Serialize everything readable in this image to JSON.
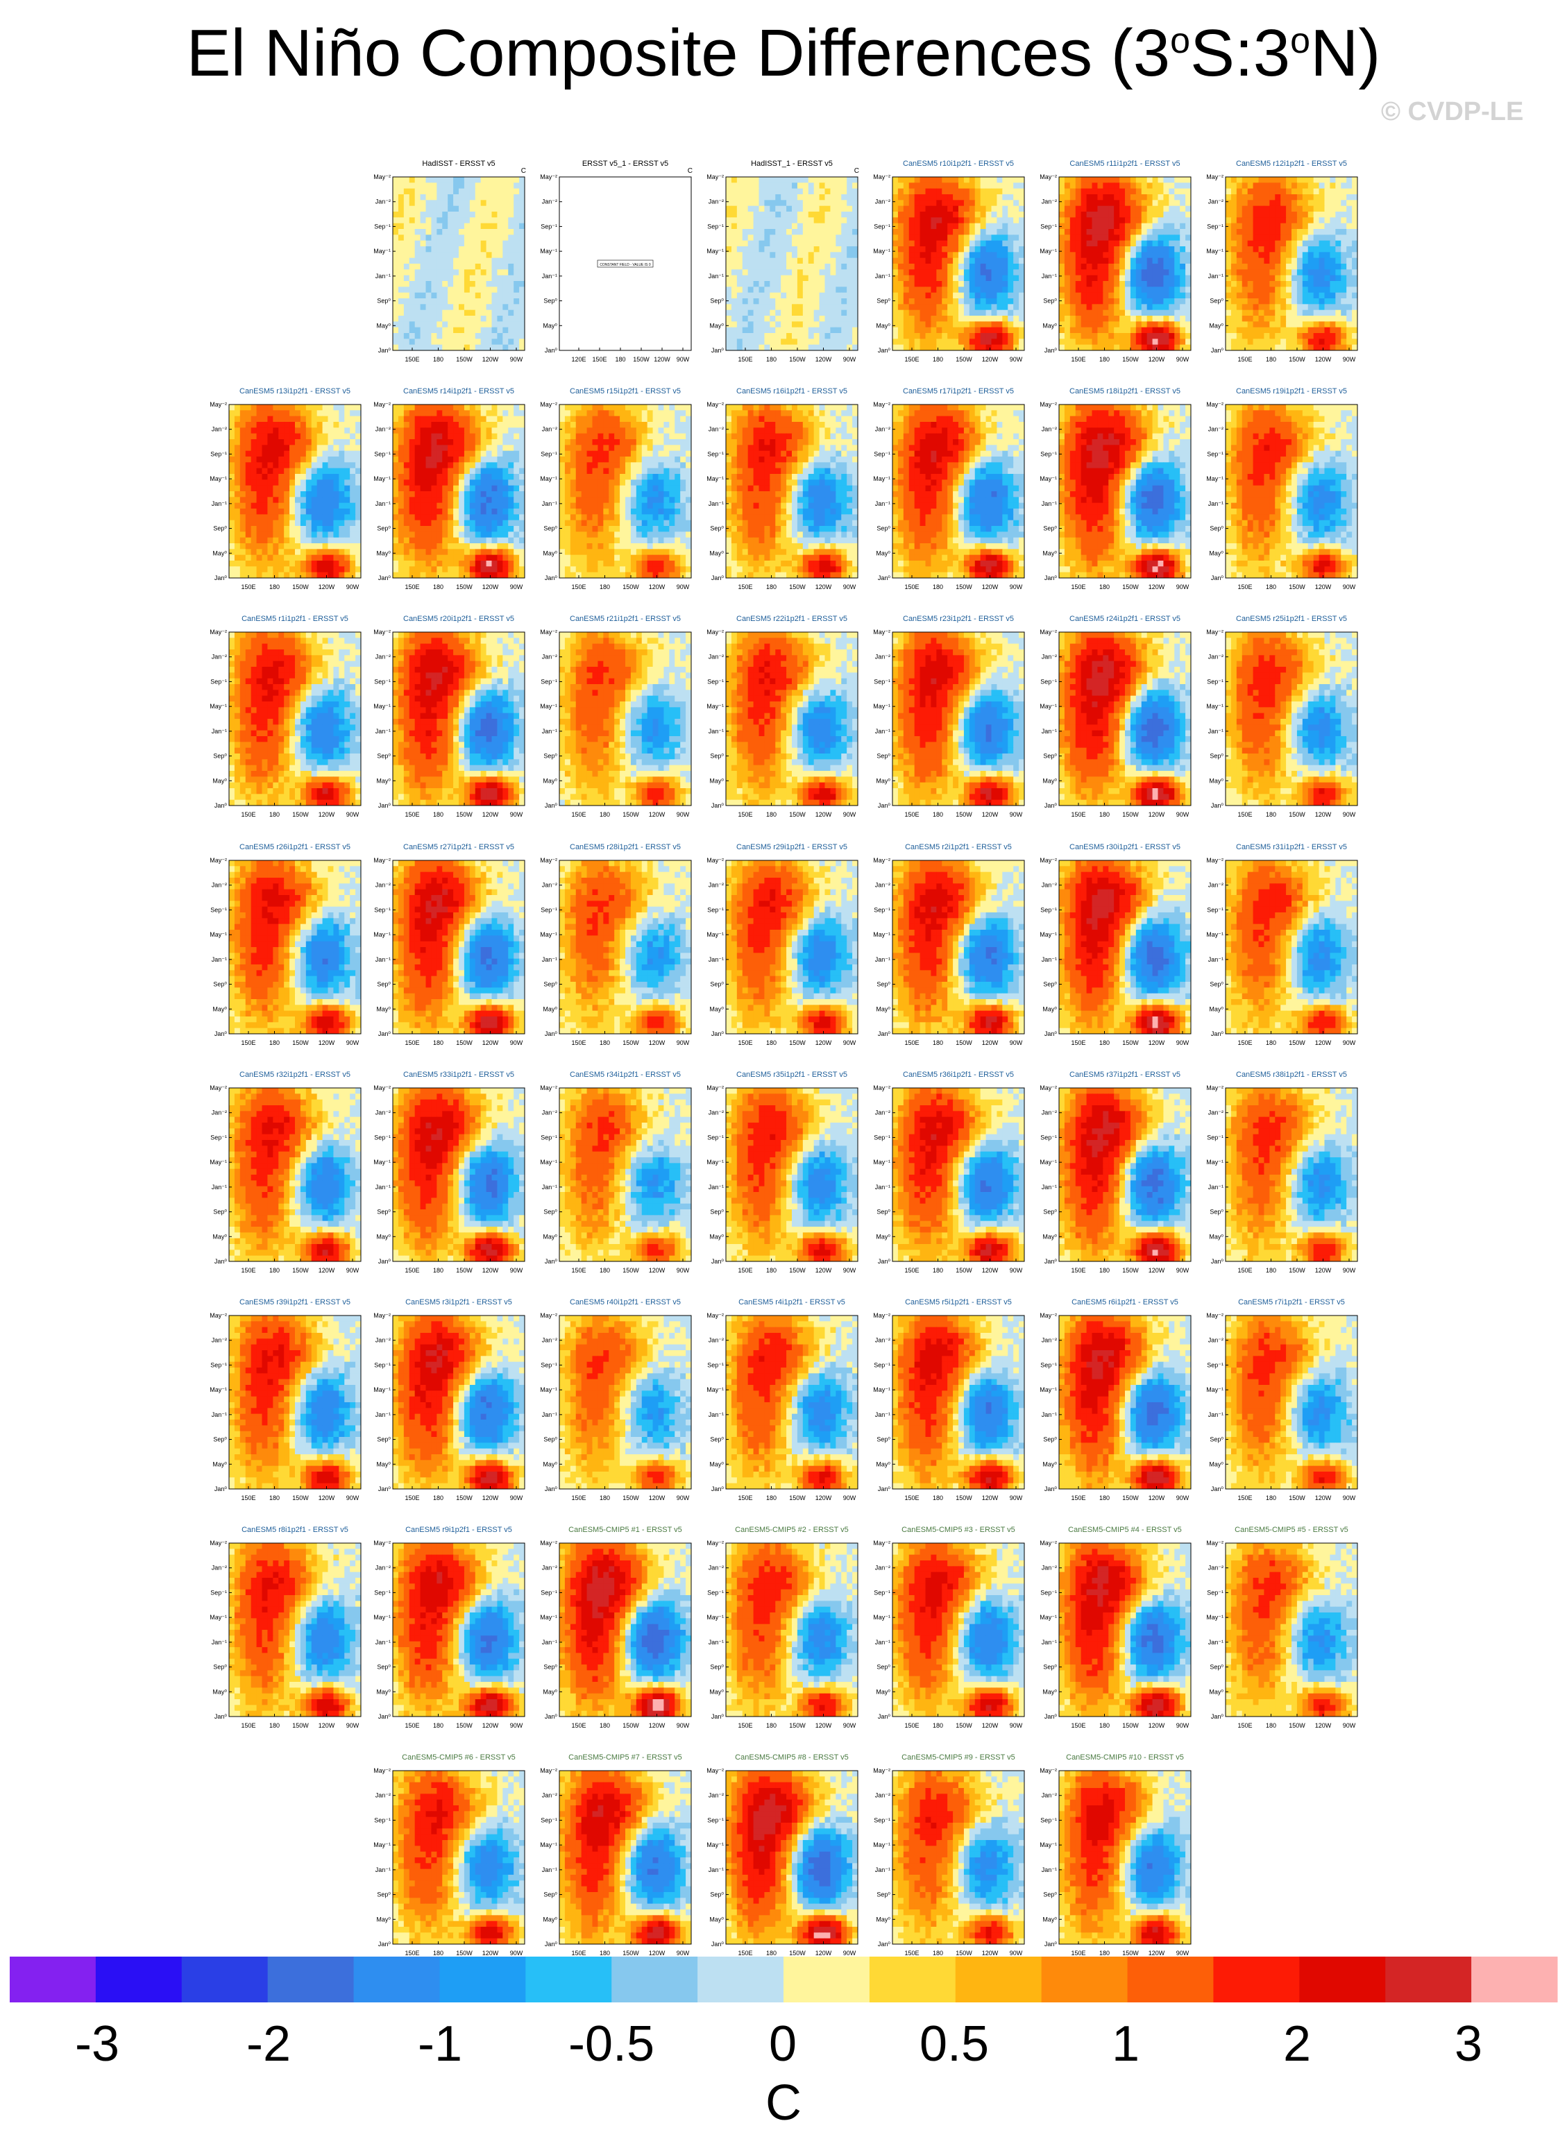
{
  "title": {
    "main": "El Niño Composite Differences (3",
    "sup1": "o",
    "mid": "S:3",
    "sup2": "o",
    "end": "N)"
  },
  "watermark": "© CVDP-LE",
  "axes": {
    "y_ticks": [
      "May⁻²",
      "Jan⁻²",
      "Sep⁻¹",
      "May⁻¹",
      "Jan⁻¹",
      "Sep⁰",
      "May⁰",
      "Jan⁰"
    ],
    "x_ticks": [
      "150E",
      "180",
      "150W",
      "120W",
      "90W"
    ],
    "x_ticks_wide": [
      "120E",
      "150E",
      "180",
      "150W",
      "120W",
      "90W"
    ],
    "units_marker": "C"
  },
  "panels": [
    {
      "title": "HadISST - ERSST v5",
      "kind": "obs"
    },
    {
      "title": "ERSST v5_1 - ERSST v5",
      "kind": "constant",
      "note": "CONSTANT FIELD - VALUE IS 0"
    },
    {
      "title": "HadISST_1 - ERSST v5",
      "kind": "obs"
    },
    {
      "title": "CanESM5 r10i1p2f1 - ERSST v5",
      "kind": "model"
    },
    {
      "title": "CanESM5 r11i1p2f1 - ERSST v5",
      "kind": "model"
    },
    {
      "title": "CanESM5 r12i1p2f1 - ERSST v5",
      "kind": "model"
    },
    {
      "title": "CanESM5 r13i1p2f1 - ERSST v5",
      "kind": "model"
    },
    {
      "title": "CanESM5 r14i1p2f1 - ERSST v5",
      "kind": "model"
    },
    {
      "title": "CanESM5 r15i1p2f1 - ERSST v5",
      "kind": "model"
    },
    {
      "title": "CanESM5 r16i1p2f1 - ERSST v5",
      "kind": "model"
    },
    {
      "title": "CanESM5 r17i1p2f1 - ERSST v5",
      "kind": "model"
    },
    {
      "title": "CanESM5 r18i1p2f1 - ERSST v5",
      "kind": "model"
    },
    {
      "title": "CanESM5 r19i1p2f1 - ERSST v5",
      "kind": "model"
    },
    {
      "title": "CanESM5 r1i1p2f1 - ERSST v5",
      "kind": "model"
    },
    {
      "title": "CanESM5 r20i1p2f1 - ERSST v5",
      "kind": "model"
    },
    {
      "title": "CanESM5 r21i1p2f1 - ERSST v5",
      "kind": "model"
    },
    {
      "title": "CanESM5 r22i1p2f1 - ERSST v5",
      "kind": "model"
    },
    {
      "title": "CanESM5 r23i1p2f1 - ERSST v5",
      "kind": "model"
    },
    {
      "title": "CanESM5 r24i1p2f1 - ERSST v5",
      "kind": "model"
    },
    {
      "title": "CanESM5 r25i1p2f1 - ERSST v5",
      "kind": "model"
    },
    {
      "title": "CanESM5 r26i1p2f1 - ERSST v5",
      "kind": "model"
    },
    {
      "title": "CanESM5 r27i1p2f1 - ERSST v5",
      "kind": "model"
    },
    {
      "title": "CanESM5 r28i1p2f1 - ERSST v5",
      "kind": "model"
    },
    {
      "title": "CanESM5 r29i1p2f1 - ERSST v5",
      "kind": "model"
    },
    {
      "title": "CanESM5 r2i1p2f1 - ERSST v5",
      "kind": "model"
    },
    {
      "title": "CanESM5 r30i1p2f1 - ERSST v5",
      "kind": "model"
    },
    {
      "title": "CanESM5 r31i1p2f1 - ERSST v5",
      "kind": "model"
    },
    {
      "title": "CanESM5 r32i1p2f1 - ERSST v5",
      "kind": "model"
    },
    {
      "title": "CanESM5 r33i1p2f1 - ERSST v5",
      "kind": "model"
    },
    {
      "title": "CanESM5 r34i1p2f1 - ERSST v5",
      "kind": "model"
    },
    {
      "title": "CanESM5 r35i1p2f1 - ERSST v5",
      "kind": "model"
    },
    {
      "title": "CanESM5 r36i1p2f1 - ERSST v5",
      "kind": "model"
    },
    {
      "title": "CanESM5 r37i1p2f1 - ERSST v5",
      "kind": "model"
    },
    {
      "title": "CanESM5 r38i1p2f1 - ERSST v5",
      "kind": "model"
    },
    {
      "title": "CanESM5 r39i1p2f1 - ERSST v5",
      "kind": "model"
    },
    {
      "title": "CanESM5 r3i1p2f1 - ERSST v5",
      "kind": "model"
    },
    {
      "title": "CanESM5 r40i1p2f1 - ERSST v5",
      "kind": "model"
    },
    {
      "title": "CanESM5 r4i1p2f1 - ERSST v5",
      "kind": "model"
    },
    {
      "title": "CanESM5 r5i1p2f1 - ERSST v5",
      "kind": "model"
    },
    {
      "title": "CanESM5 r6i1p2f1 - ERSST v5",
      "kind": "model"
    },
    {
      "title": "CanESM5 r7i1p2f1 - ERSST v5",
      "kind": "model"
    },
    {
      "title": "CanESM5 r8i1p2f1 - ERSST v5",
      "kind": "model"
    },
    {
      "title": "CanESM5 r9i1p2f1 - ERSST v5",
      "kind": "model"
    },
    {
      "title": "CanESM5-CMIP5 #1 - ERSST v5",
      "kind": "cmip5"
    },
    {
      "title": "CanESM5-CMIP5 #2 - ERSST v5",
      "kind": "cmip5"
    },
    {
      "title": "CanESM5-CMIP5 #3 - ERSST v5",
      "kind": "cmip5"
    },
    {
      "title": "CanESM5-CMIP5 #4 - ERSST v5",
      "kind": "cmip5"
    },
    {
      "title": "CanESM5-CMIP5 #5 - ERSST v5",
      "kind": "cmip5"
    },
    {
      "title": "CanESM5-CMIP5 #6 - ERSST v5",
      "kind": "cmip5"
    },
    {
      "title": "CanESM5-CMIP5 #7 - ERSST v5",
      "kind": "cmip5"
    },
    {
      "title": "CanESM5-CMIP5 #8 - ERSST v5",
      "kind": "cmip5"
    },
    {
      "title": "CanESM5-CMIP5 #9 - ERSST v5",
      "kind": "cmip5"
    },
    {
      "title": "CanESM5-CMIP5 #10 - ERSST v5",
      "kind": "cmip5"
    }
  ],
  "title_colors": {
    "obs": "#000000",
    "model": "#1f5f9a",
    "cmip5": "#4b7b43"
  },
  "colorbar": {
    "colors": [
      "#8421f0",
      "#2a0ff5",
      "#2a3fe6",
      "#3c6fdc",
      "#2e8ef0",
      "#1e9ef5",
      "#27bff7",
      "#86c8ee",
      "#bde0f2",
      "#fff59c",
      "#ffd935",
      "#ffb511",
      "#fe8a0b",
      "#fd5f08",
      "#fd1b05",
      "#e00800",
      "#d42525",
      "#fdb1b1"
    ],
    "labels": [
      "-3",
      "-2",
      "-1",
      "-0.5",
      "0",
      "0.5",
      "1",
      "2",
      "3"
    ],
    "units": "C"
  },
  "chart_data": {
    "type": "heatmap",
    "title": "El Niño Composite Differences (3oS:3oN)",
    "xlabel": "",
    "ylabel": "",
    "x_ticks": [
      "150E",
      "180",
      "150W",
      "120W",
      "90W"
    ],
    "y_ticks": [
      "Jan⁰",
      "May⁰",
      "Sep⁰",
      "Jan⁻¹",
      "May⁻¹",
      "Sep⁻¹",
      "Jan⁻²",
      "May⁻²"
    ],
    "color_levels": [
      -3,
      -2,
      -1,
      -0.5,
      0,
      0.5,
      1,
      2,
      3
    ],
    "units": "C",
    "panel_count": 53
  }
}
